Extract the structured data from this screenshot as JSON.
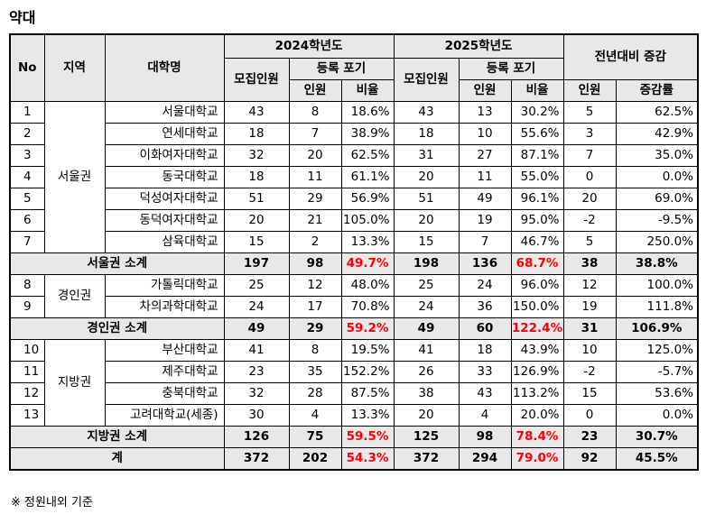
{
  "title": "약대",
  "note": "※ 정원내외 기준",
  "headers": {
    "no": "No",
    "region": "지역",
    "univ": "대학명",
    "y2024": "2024학년도",
    "y2025": "2025학년도",
    "change": "전년대비 증감",
    "recruit": "모집인원",
    "forfeit": "등록 포기",
    "count": "인원",
    "ratio": "비율",
    "rate": "증감률"
  },
  "seoul": {
    "region": "서울권",
    "rows": [
      {
        "no": "1",
        "univ": "서울대학교",
        "r24": "43",
        "f24": "8",
        "p24": "18.6%",
        "r25": "43",
        "f25": "13",
        "p25": "30.2%",
        "d": "5",
        "dr": "62.5%"
      },
      {
        "no": "2",
        "univ": "연세대학교",
        "r24": "18",
        "f24": "7",
        "p24": "38.9%",
        "r25": "18",
        "f25": "10",
        "p25": "55.6%",
        "d": "3",
        "dr": "42.9%"
      },
      {
        "no": "3",
        "univ": "이화여자대학교",
        "r24": "32",
        "f24": "20",
        "p24": "62.5%",
        "r25": "31",
        "f25": "27",
        "p25": "87.1%",
        "d": "7",
        "dr": "35.0%"
      },
      {
        "no": "4",
        "univ": "동국대학교",
        "r24": "18",
        "f24": "11",
        "p24": "61.1%",
        "r25": "20",
        "f25": "11",
        "p25": "55.0%",
        "d": "0",
        "dr": "0.0%"
      },
      {
        "no": "5",
        "univ": "덕성여자대학교",
        "r24": "51",
        "f24": "29",
        "p24": "56.9%",
        "r25": "51",
        "f25": "49",
        "p25": "96.1%",
        "d": "20",
        "dr": "69.0%"
      },
      {
        "no": "6",
        "univ": "동덕여자대학교",
        "r24": "20",
        "f24": "21",
        "p24": "105.0%",
        "r25": "20",
        "f25": "19",
        "p25": "95.0%",
        "d": "-2",
        "dr": "-9.5%"
      },
      {
        "no": "7",
        "univ": "삼육대학교",
        "r24": "15",
        "f24": "2",
        "p24": "13.3%",
        "r25": "15",
        "f25": "7",
        "p25": "46.7%",
        "d": "5",
        "dr": "250.0%"
      }
    ],
    "subtotal": {
      "label": "서울권 소계",
      "r24": "197",
      "f24": "98",
      "p24": "49.7%",
      "r25": "198",
      "f25": "136",
      "p25": "68.7%",
      "d": "38",
      "dr": "38.8%"
    }
  },
  "gyeongin": {
    "region": "경인권",
    "rows": [
      {
        "no": "8",
        "univ": "가톨릭대학교",
        "r24": "25",
        "f24": "12",
        "p24": "48.0%",
        "r25": "25",
        "f25": "24",
        "p25": "96.0%",
        "d": "12",
        "dr": "100.0%"
      },
      {
        "no": "9",
        "univ": "차의과학대학교",
        "r24": "24",
        "f24": "17",
        "p24": "70.8%",
        "r25": "24",
        "f25": "36",
        "p25": "150.0%",
        "d": "19",
        "dr": "111.8%"
      }
    ],
    "subtotal": {
      "label": "경인권 소계",
      "r24": "49",
      "f24": "29",
      "p24": "59.2%",
      "r25": "49",
      "f25": "60",
      "p25": "122.4%",
      "d": "31",
      "dr": "106.9%"
    }
  },
  "local": {
    "region": "지방권",
    "rows": [
      {
        "no": "10",
        "univ": "부산대학교",
        "r24": "41",
        "f24": "8",
        "p24": "19.5%",
        "r25": "41",
        "f25": "18",
        "p25": "43.9%",
        "d": "10",
        "dr": "125.0%"
      },
      {
        "no": "11",
        "univ": "제주대학교",
        "r24": "23",
        "f24": "35",
        "p24": "152.2%",
        "r25": "26",
        "f25": "33",
        "p25": "126.9%",
        "d": "-2",
        "dr": "-5.7%"
      },
      {
        "no": "12",
        "univ": "충북대학교",
        "r24": "32",
        "f24": "28",
        "p24": "87.5%",
        "r25": "38",
        "f25": "43",
        "p25": "113.2%",
        "d": "15",
        "dr": "53.6%"
      },
      {
        "no": "13",
        "univ": "고려대학교(세종)",
        "r24": "30",
        "f24": "4",
        "p24": "13.3%",
        "r25": "20",
        "f25": "4",
        "p25": "20.0%",
        "d": "0",
        "dr": "0.0%"
      }
    ],
    "subtotal": {
      "label": "지방권 소계",
      "r24": "126",
      "f24": "75",
      "p24": "59.5%",
      "r25": "125",
      "f25": "98",
      "p25": "78.4%",
      "d": "23",
      "dr": "30.7%"
    }
  },
  "total": {
    "label": "계",
    "r24": "372",
    "f24": "202",
    "p24": "54.3%",
    "r25": "372",
    "f25": "294",
    "p25": "79.0%",
    "d": "92",
    "dr": "45.5%"
  },
  "colors": {
    "header_bg": "#e8e8e8",
    "highlight": "#ff0000"
  }
}
